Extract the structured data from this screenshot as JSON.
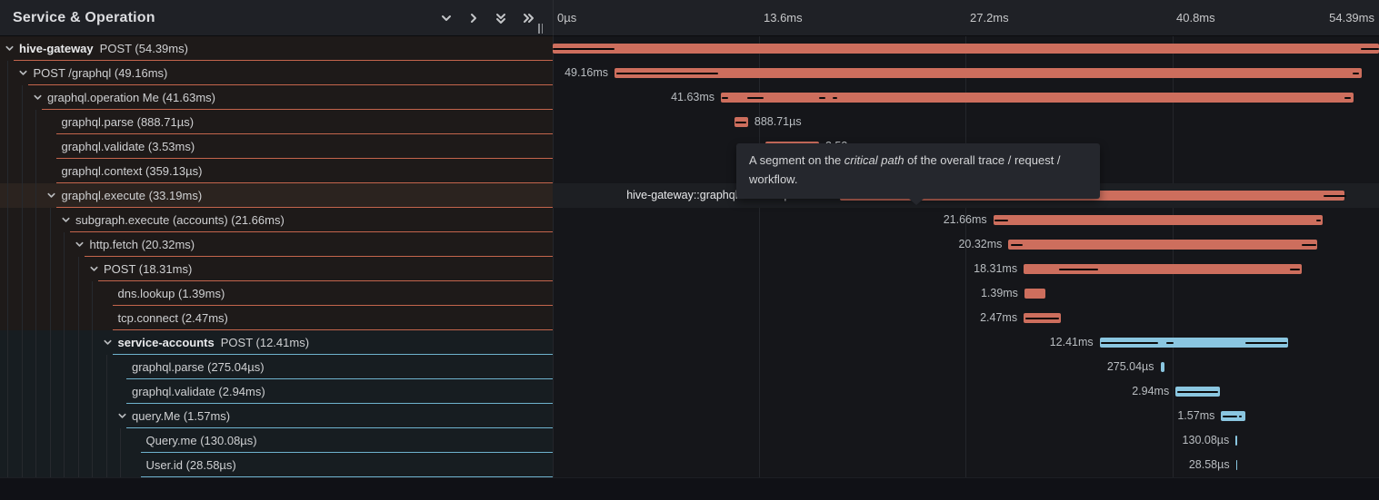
{
  "panel": {
    "title": "Service & Operation"
  },
  "header_icons": [
    {
      "name": "collapse-one-icon",
      "type": "chevron-down"
    },
    {
      "name": "expand-one-icon",
      "type": "chevron-right"
    },
    {
      "name": "collapse-all-icon",
      "type": "double-chevron-down"
    },
    {
      "name": "expand-all-icon",
      "type": "double-chevron-right"
    }
  ],
  "time_axis": {
    "ticks": [
      "0µs",
      "13.6ms",
      "27.2ms",
      "40.8ms"
    ],
    "tick_positions_ms": [
      0,
      13.6,
      27.2,
      40.8
    ],
    "end_tick": "54.39ms",
    "total_ms": 54.39
  },
  "colors": {
    "salmon_bar": "#cd6e5d",
    "salmon_border": "#c4654c",
    "blue_bar": "#8ac6e0",
    "blue_border": "#6fb3cf",
    "critical_path": "#0a0a0b"
  },
  "tooltip": {
    "text_before": "A segment on the ",
    "text_italic": "critical path",
    "text_after": " of the overall trace / request / workflow."
  },
  "rows": [
    {
      "service": "hive-gateway",
      "label": "POST (54.39ms)",
      "depth": 0,
      "expandable": true,
      "color": "salmon",
      "start_ms": 0,
      "duration_ms": 54.39,
      "bar_label": "",
      "label_side": "none",
      "critical": [
        [
          0,
          4.05
        ],
        [
          53.2,
          1.19
        ]
      ]
    },
    {
      "service": "",
      "label": "POST /graphql (49.16ms)",
      "depth": 1,
      "expandable": true,
      "color": "salmon",
      "start_ms": 4.07,
      "duration_ms": 49.16,
      "bar_label": "49.16ms",
      "label_side": "left",
      "critical": [
        [
          4.2,
          6.7
        ],
        [
          52.65,
          0.45
        ]
      ]
    },
    {
      "service": "",
      "label": "graphql.operation Me (41.63ms)",
      "depth": 2,
      "expandable": true,
      "color": "salmon",
      "start_ms": 11.07,
      "duration_ms": 41.63,
      "bar_label": "41.63ms",
      "label_side": "left",
      "critical": [
        [
          11.1,
          0.45
        ],
        [
          12.8,
          1.1
        ],
        [
          17.55,
          0.4
        ],
        [
          18.45,
          0.3
        ],
        [
          52.1,
          0.45
        ]
      ]
    },
    {
      "service": "",
      "label": "graphql.parse (888.71µs)",
      "depth": 3,
      "expandable": false,
      "color": "salmon",
      "start_ms": 11.97,
      "duration_ms": 0.889,
      "bar_label": "888.71µs",
      "label_side": "right",
      "critical": [
        [
          12.05,
          0.69
        ]
      ]
    },
    {
      "service": "",
      "label": "graphql.validate (3.53ms)",
      "depth": 3,
      "expandable": false,
      "color": "salmon",
      "start_ms": 14.0,
      "duration_ms": 3.53,
      "bar_label": "3.53ms",
      "label_side": "right",
      "critical": [
        [
          14.1,
          3.3
        ]
      ]
    },
    {
      "service": "",
      "label": "graphql.context (359.13µs)",
      "depth": 3,
      "expandable": false,
      "color": "salmon",
      "start_ms": 17.6,
      "duration_ms": 0.359,
      "bar_label": "359.13µs",
      "label_side": "right",
      "critical": []
    },
    {
      "service": "",
      "label": "graphql.execute (33.19ms)",
      "depth": 3,
      "expandable": true,
      "color": "salmon",
      "hover": true,
      "start_ms": 18.9,
      "duration_ms": 33.19,
      "bar_label": "hive-gateway::graphql.execute | 33.19ms",
      "label_side": "left",
      "critical": [
        [
          19.05,
          9.85
        ],
        [
          50.75,
          1.5
        ]
      ]
    },
    {
      "service": "",
      "label": "subgraph.execute (accounts) (21.66ms)",
      "depth": 4,
      "expandable": true,
      "color": "salmon",
      "start_ms": 29.0,
      "duration_ms": 21.66,
      "bar_label": "21.66ms",
      "label_side": "left",
      "critical": [
        [
          29.1,
          0.85
        ],
        [
          50.25,
          0.3
        ]
      ]
    },
    {
      "service": "",
      "label": "http.fetch (20.32ms)",
      "depth": 5,
      "expandable": true,
      "color": "salmon",
      "start_ms": 30.0,
      "duration_ms": 20.32,
      "bar_label": "20.32ms",
      "label_side": "left",
      "critical": [
        [
          30.15,
          0.8
        ],
        [
          49.3,
          0.95
        ]
      ]
    },
    {
      "service": "",
      "label": "POST (18.31ms)",
      "depth": 6,
      "expandable": true,
      "color": "salmon",
      "start_ms": 31.0,
      "duration_ms": 18.31,
      "bar_label": "18.31ms",
      "label_side": "left",
      "critical": [
        [
          33.3,
          2.6
        ],
        [
          48.5,
          0.7
        ]
      ]
    },
    {
      "service": "",
      "label": "dns.lookup (1.39ms)",
      "depth": 7,
      "expandable": false,
      "color": "salmon",
      "start_ms": 31.05,
      "duration_ms": 1.39,
      "bar_label": "1.39ms",
      "label_side": "left",
      "critical": []
    },
    {
      "service": "",
      "label": "tcp.connect (2.47ms)",
      "depth": 7,
      "expandable": false,
      "color": "salmon",
      "start_ms": 31.0,
      "duration_ms": 2.47,
      "bar_label": "2.47ms",
      "label_side": "left",
      "critical": [
        [
          31.1,
          2.2
        ]
      ]
    },
    {
      "service": "service-accounts",
      "label": "POST (12.41ms)",
      "depth": 7,
      "expandable": true,
      "color": "blue",
      "start_ms": 36.0,
      "duration_ms": 12.41,
      "bar_label": "12.41ms",
      "label_side": "left",
      "critical": [
        [
          36.1,
          3.75
        ],
        [
          40.4,
          0.45
        ],
        [
          45.6,
          2.75
        ]
      ]
    },
    {
      "service": "",
      "label": "graphql.parse (275.04µs)",
      "depth": 8,
      "expandable": false,
      "color": "blue",
      "start_ms": 40.0,
      "duration_ms": 0.275,
      "bar_label": "275.04µs",
      "label_side": "left",
      "critical": []
    },
    {
      "service": "",
      "label": "graphql.validate (2.94ms)",
      "depth": 8,
      "expandable": false,
      "color": "blue",
      "start_ms": 41.0,
      "duration_ms": 2.94,
      "bar_label": "2.94ms",
      "label_side": "left",
      "critical": [
        [
          41.1,
          2.7
        ]
      ]
    },
    {
      "service": "",
      "label": "query.Me (1.57ms)",
      "depth": 8,
      "expandable": true,
      "color": "blue",
      "start_ms": 44.0,
      "duration_ms": 1.57,
      "bar_label": "1.57ms",
      "label_side": "left",
      "critical": [
        [
          44.08,
          0.95
        ],
        [
          45.2,
          0.18
        ]
      ]
    },
    {
      "service": "",
      "label": "Query.me (130.08µs)",
      "depth": 9,
      "expandable": false,
      "color": "blue",
      "start_ms": 44.95,
      "duration_ms": 0.13,
      "bar_label": "130.08µs",
      "label_side": "left",
      "critical": []
    },
    {
      "service": "",
      "label": "User.id (28.58µs)",
      "depth": 9,
      "expandable": false,
      "color": "blue",
      "start_ms": 44.97,
      "duration_ms": 0.0286,
      "bar_label": "28.58µs",
      "label_side": "left",
      "critical": []
    }
  ]
}
